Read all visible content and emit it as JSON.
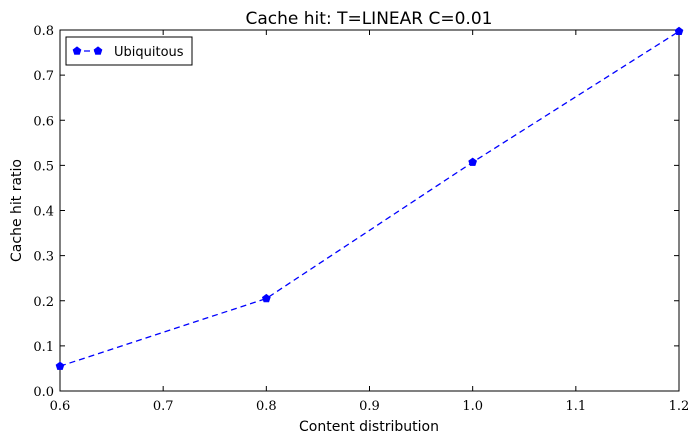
{
  "chart_data": {
    "type": "line",
    "title": "Cache hit: T=LINEAR C=0.01",
    "xlabel": "Content distribution",
    "ylabel": "Cache hit ratio",
    "xlim": [
      0.6,
      1.2
    ],
    "ylim": [
      0.0,
      0.8
    ],
    "xticks": [
      "0.6",
      "0.7",
      "0.8",
      "0.9",
      "1.0",
      "1.1",
      "1.2"
    ],
    "yticks": [
      "0.0",
      "0.1",
      "0.2",
      "0.3",
      "0.4",
      "0.5",
      "0.6",
      "0.7",
      "0.8"
    ],
    "legend_position": "top-left",
    "grid": false,
    "series": [
      {
        "name": "Ubiquitous",
        "color": "#0000ff",
        "marker": "pentagon",
        "linestyle": "dashed",
        "x": [
          0.6,
          0.8,
          1.0,
          1.2
        ],
        "y": [
          0.055,
          0.205,
          0.507,
          0.797
        ]
      }
    ]
  }
}
